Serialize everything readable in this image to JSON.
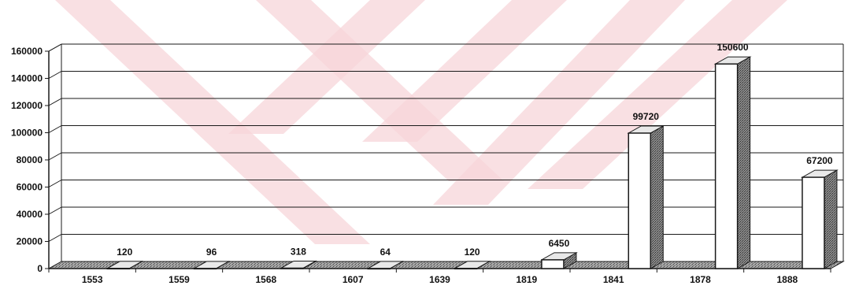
{
  "chart_data": {
    "type": "bar",
    "title": "",
    "xlabel": "",
    "ylabel": "",
    "categories": [
      "1553",
      "1559",
      "1568",
      "1607",
      "1639",
      "1819",
      "1841",
      "1878",
      "1888"
    ],
    "values": [
      120,
      96,
      318,
      64,
      120,
      6450,
      99720,
      150600,
      67200
    ],
    "data_labels": [
      "120",
      "96",
      "318",
      "64",
      "120",
      "6450",
      "99720",
      "150600",
      "67200"
    ],
    "ylim": [
      0,
      160000
    ],
    "yticks": [
      0,
      20000,
      40000,
      60000,
      80000,
      100000,
      120000,
      140000,
      160000
    ],
    "ytick_labels": [
      "0",
      "20000",
      "40000",
      "60000",
      "80000",
      "100000",
      "120000",
      "140000",
      "160000"
    ],
    "grid": true,
    "style": "3d-column",
    "colors": {
      "bar_front": "#ffffff",
      "bar_side": "#7a7a7a",
      "bar_edge": "#1a1a1a",
      "floor": "#9a9a9a",
      "gridline": "#1a1a1a",
      "watermark": "#f7d6d9"
    }
  }
}
